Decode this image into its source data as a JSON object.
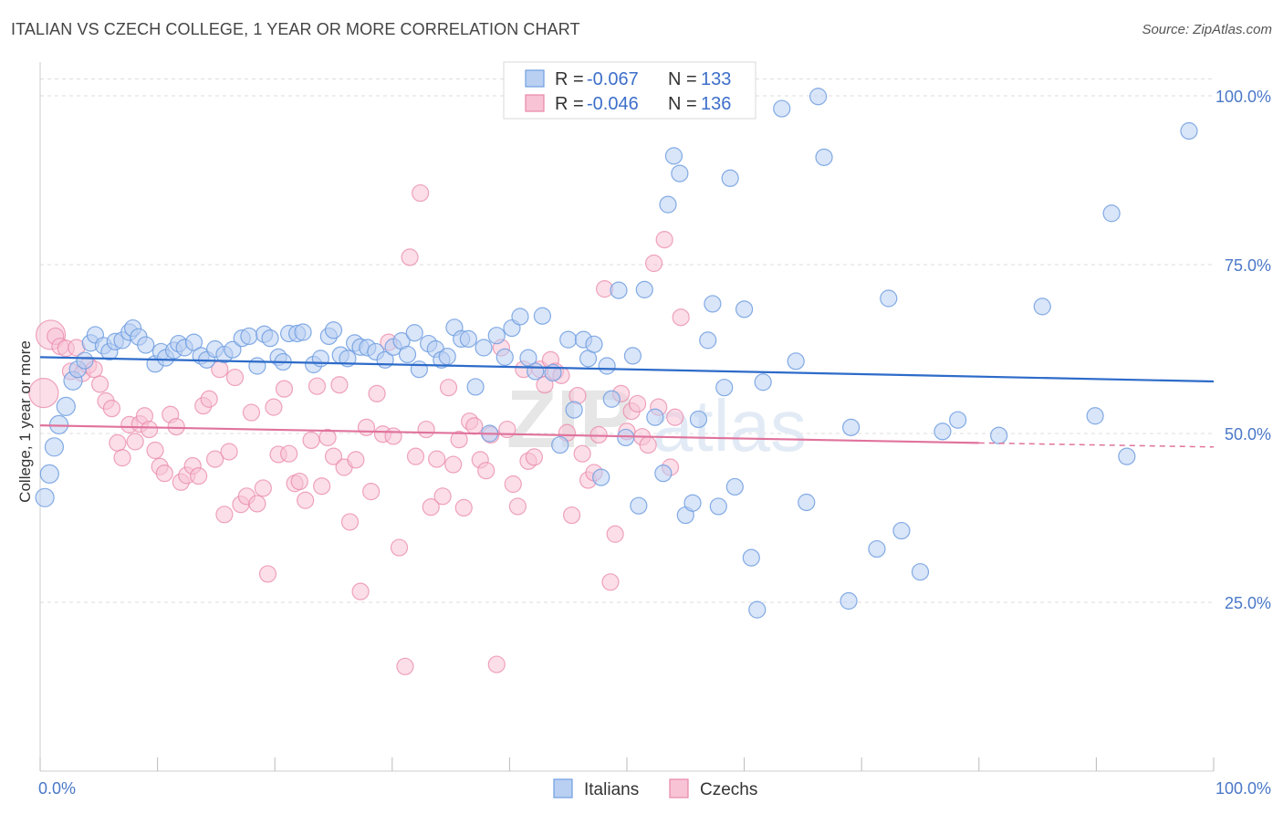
{
  "title": "ITALIAN VS CZECH COLLEGE, 1 YEAR OR MORE CORRELATION CHART",
  "source": "Source: ZipAtlas.com",
  "watermark": {
    "zip": "ZIP",
    "atlas": "atlas"
  },
  "colors": {
    "italians": "#6f9ee0",
    "italians_fill": "#b9d0f3",
    "czechs": "#e987aa",
    "czechs_fill": "#f7c3d5",
    "italians_line": "#2d6bc9",
    "czechs_line": "#e0739c",
    "grid": "#dddddd",
    "tick_text": "#4a78c8"
  },
  "legend": {
    "rows": [
      {
        "r_label": "R = ",
        "r_value": "-0.067",
        "n_label": "N = ",
        "n_value": "133"
      },
      {
        "r_label": "R = ",
        "r_value": "-0.046",
        "n_label": "N = ",
        "n_value": "136"
      }
    ]
  },
  "chart_data": {
    "type": "scatter",
    "xlabel": "",
    "ylabel": "College, 1 year or more",
    "xlim": [
      0,
      100
    ],
    "ylim": [
      0,
      105
    ],
    "x_tick_labels": [
      "0.0%",
      "100.0%"
    ],
    "y_tick_labels": [
      "25.0%",
      "50.0%",
      "75.0%",
      "100.0%"
    ],
    "y_ticks": [
      25,
      50,
      75,
      100
    ],
    "grid": "horizontal dashed",
    "legend_position": "top-center",
    "series": [
      {
        "name": "Italians",
        "trend": {
          "x": [
            0,
            100
          ],
          "y": [
            61.3,
            57.7
          ]
        },
        "points": [
          [
            0.4,
            40.5
          ],
          [
            0.8,
            44
          ],
          [
            1.2,
            48
          ],
          [
            1.6,
            51.3
          ],
          [
            2.2,
            54
          ],
          [
            2.8,
            57.8
          ],
          [
            3.2,
            59.5
          ],
          [
            3.8,
            60.8
          ],
          [
            4.3,
            63.4
          ],
          [
            4.7,
            64.6
          ],
          [
            5.4,
            63
          ],
          [
            5.9,
            62.1
          ],
          [
            6.4,
            63.6
          ],
          [
            7.0,
            63.8
          ],
          [
            7.6,
            65
          ],
          [
            7.9,
            65.6
          ],
          [
            8.4,
            64.3
          ],
          [
            9.0,
            63.1
          ],
          [
            9.8,
            60.3
          ],
          [
            10.3,
            62.1
          ],
          [
            10.7,
            61.2
          ],
          [
            11.4,
            62.3
          ],
          [
            11.8,
            63.3
          ],
          [
            12.3,
            62.7
          ],
          [
            13.1,
            63.5
          ],
          [
            13.7,
            61.5
          ],
          [
            14.2,
            60.9
          ],
          [
            14.9,
            62.5
          ],
          [
            15.7,
            61.7
          ],
          [
            16.4,
            62.4
          ],
          [
            17.2,
            64.1
          ],
          [
            17.8,
            64.4
          ],
          [
            18.5,
            60
          ],
          [
            19.1,
            64.7
          ],
          [
            19.6,
            64.1
          ],
          [
            20.3,
            61.3
          ],
          [
            20.7,
            60.6
          ],
          [
            21.2,
            64.8
          ],
          [
            21.9,
            64.8
          ],
          [
            22.4,
            65
          ],
          [
            23.3,
            60.2
          ],
          [
            23.9,
            61.1
          ],
          [
            24.6,
            64.4
          ],
          [
            25.0,
            65.3
          ],
          [
            25.6,
            61.6
          ],
          [
            26.2,
            61.1
          ],
          [
            26.8,
            63.4
          ],
          [
            27.3,
            62.8
          ],
          [
            27.9,
            62.7
          ],
          [
            28.6,
            62.1
          ],
          [
            29.4,
            60.9
          ],
          [
            30.1,
            62.8
          ],
          [
            30.8,
            63.7
          ],
          [
            31.3,
            61.7
          ],
          [
            31.9,
            64.9
          ],
          [
            32.3,
            59.5
          ],
          [
            33.1,
            63.3
          ],
          [
            33.7,
            62.5
          ],
          [
            34.2,
            60.9
          ],
          [
            34.7,
            61.4
          ],
          [
            35.3,
            65.7
          ],
          [
            35.9,
            64
          ],
          [
            36.5,
            64
          ],
          [
            37.1,
            56.9
          ],
          [
            37.8,
            62.7
          ],
          [
            38.3,
            50
          ],
          [
            38.9,
            64.5
          ],
          [
            39.6,
            61.3
          ],
          [
            40.2,
            65.6
          ],
          [
            40.9,
            67.3
          ],
          [
            41.6,
            61.2
          ],
          [
            42.2,
            59.2
          ],
          [
            42.8,
            67.4
          ],
          [
            43.7,
            59
          ],
          [
            44.3,
            48.3
          ],
          [
            45.0,
            63.9
          ],
          [
            45.5,
            53.5
          ],
          [
            46.3,
            63.9
          ],
          [
            46.7,
            61.1
          ],
          [
            47.2,
            63.2
          ],
          [
            47.8,
            43.5
          ],
          [
            48.3,
            60
          ],
          [
            48.7,
            55.1
          ],
          [
            49.3,
            71.2
          ],
          [
            49.9,
            49.4
          ],
          [
            50.5,
            61.5
          ],
          [
            51.0,
            39.3
          ],
          [
            51.5,
            71.3
          ],
          [
            52.4,
            52.4
          ],
          [
            53.1,
            44.1
          ],
          [
            53.5,
            83.9
          ],
          [
            54.0,
            91.1
          ],
          [
            54.5,
            88.5
          ],
          [
            55.0,
            37.9
          ],
          [
            55.6,
            39.7
          ],
          [
            56.1,
            52.1
          ],
          [
            56.9,
            63.8
          ],
          [
            57.3,
            69.2
          ],
          [
            57.8,
            39.2
          ],
          [
            58.3,
            56.8
          ],
          [
            58.8,
            87.8
          ],
          [
            59.2,
            42.1
          ],
          [
            60.0,
            68.4
          ],
          [
            60.6,
            31.6
          ],
          [
            61.1,
            23.9
          ],
          [
            61.6,
            57.6
          ],
          [
            63.2,
            98.1
          ],
          [
            64.4,
            60.7
          ],
          [
            65.3,
            39.8
          ],
          [
            66.3,
            99.9
          ],
          [
            66.8,
            90.9
          ],
          [
            68.9,
            25.2
          ],
          [
            69.1,
            50.9
          ],
          [
            71.3,
            32.9
          ],
          [
            72.3,
            70
          ],
          [
            73.4,
            35.6
          ],
          [
            75.0,
            29.5
          ],
          [
            76.9,
            50.3
          ],
          [
            78.2,
            52
          ],
          [
            81.7,
            49.7
          ],
          [
            85.4,
            68.8
          ],
          [
            89.9,
            52.6
          ],
          [
            91.3,
            82.6
          ],
          [
            92.6,
            46.6
          ],
          [
            97.9,
            94.8
          ]
        ]
      },
      {
        "name": "Czechs",
        "trend": {
          "x": [
            0,
            80
          ],
          "y": [
            51.2,
            48.6
          ]
        },
        "trend_extension": {
          "x": [
            80,
            100
          ],
          "y": [
            48.6,
            48
          ]
        },
        "points": [
          [
            0.3,
            56
          ],
          [
            0.9,
            64.6
          ],
          [
            1.3,
            64.4
          ],
          [
            1.7,
            62.9
          ],
          [
            2.2,
            62.6
          ],
          [
            2.6,
            59.2
          ],
          [
            3.1,
            62.7
          ],
          [
            3.6,
            58.9
          ],
          [
            4.1,
            60.1
          ],
          [
            4.6,
            59.5
          ],
          [
            5.1,
            57.3
          ],
          [
            5.6,
            54.8
          ],
          [
            6.1,
            53.7
          ],
          [
            6.6,
            48.6
          ],
          [
            7.0,
            46.4
          ],
          [
            7.6,
            51.3
          ],
          [
            8.1,
            48.8
          ],
          [
            8.5,
            51.4
          ],
          [
            8.9,
            52.6
          ],
          [
            9.3,
            50.6
          ],
          [
            9.8,
            47.5
          ],
          [
            10.2,
            45.1
          ],
          [
            10.6,
            44.1
          ],
          [
            11.1,
            52.8
          ],
          [
            11.6,
            51
          ],
          [
            12.0,
            42.8
          ],
          [
            12.5,
            43.8
          ],
          [
            13.0,
            45.2
          ],
          [
            13.5,
            43.7
          ],
          [
            13.9,
            54.1
          ],
          [
            14.4,
            55.1
          ],
          [
            14.9,
            46.2
          ],
          [
            15.3,
            59.5
          ],
          [
            15.7,
            38
          ],
          [
            16.1,
            47.3
          ],
          [
            16.6,
            58.3
          ],
          [
            17.1,
            39.5
          ],
          [
            17.6,
            40.7
          ],
          [
            18.0,
            53.1
          ],
          [
            18.5,
            39.6
          ],
          [
            19.0,
            41.9
          ],
          [
            19.4,
            29.2
          ],
          [
            19.9,
            53.9
          ],
          [
            20.3,
            46.9
          ],
          [
            20.8,
            56.6
          ],
          [
            21.2,
            47
          ],
          [
            21.7,
            42.6
          ],
          [
            22.1,
            42.9
          ],
          [
            22.6,
            40.1
          ],
          [
            23.1,
            49
          ],
          [
            23.6,
            57
          ],
          [
            24.0,
            42.2
          ],
          [
            24.5,
            49.4
          ],
          [
            25.0,
            46.6
          ],
          [
            25.5,
            57.2
          ],
          [
            25.9,
            45
          ],
          [
            26.4,
            36.9
          ],
          [
            26.9,
            46.1
          ],
          [
            27.3,
            26.6
          ],
          [
            27.8,
            50.9
          ],
          [
            28.2,
            41.4
          ],
          [
            28.7,
            55.9
          ],
          [
            29.2,
            49.9
          ],
          [
            29.7,
            63.5
          ],
          [
            30.1,
            49.6
          ],
          [
            30.6,
            33.1
          ],
          [
            31.1,
            15.5
          ],
          [
            31.5,
            76.1
          ],
          [
            32.0,
            46.6
          ],
          [
            32.4,
            85.6
          ],
          [
            32.9,
            50.6
          ],
          [
            33.3,
            39.1
          ],
          [
            33.8,
            46.2
          ],
          [
            34.3,
            40.7
          ],
          [
            34.8,
            56.8
          ],
          [
            35.2,
            45.4
          ],
          [
            35.7,
            49.1
          ],
          [
            36.1,
            39
          ],
          [
            36.6,
            51.8
          ],
          [
            37.0,
            51.1
          ],
          [
            37.5,
            46.1
          ],
          [
            38.0,
            44.5
          ],
          [
            38.4,
            49.8
          ],
          [
            38.9,
            15.8
          ],
          [
            39.3,
            62.7
          ],
          [
            39.8,
            50.6
          ],
          [
            40.3,
            42.5
          ],
          [
            40.7,
            39.2
          ],
          [
            41.2,
            59.5
          ],
          [
            41.6,
            45.9
          ],
          [
            42.1,
            46.5
          ],
          [
            42.6,
            59.5
          ],
          [
            43.0,
            57.2
          ],
          [
            43.5,
            60.9
          ],
          [
            43.9,
            59.2
          ],
          [
            44.4,
            58.6
          ],
          [
            44.9,
            50.1
          ],
          [
            45.3,
            37.9
          ],
          [
            45.8,
            55.6
          ],
          [
            46.2,
            47
          ],
          [
            46.7,
            43.1
          ],
          [
            47.2,
            44.2
          ],
          [
            47.6,
            49.8
          ],
          [
            48.1,
            71.4
          ],
          [
            48.6,
            28
          ],
          [
            49.0,
            35.1
          ],
          [
            49.5,
            55.9
          ],
          [
            50.0,
            50.3
          ],
          [
            50.4,
            53.3
          ],
          [
            50.9,
            54.4
          ],
          [
            51.3,
            49.5
          ],
          [
            51.8,
            48.3
          ],
          [
            52.3,
            75.2
          ],
          [
            52.7,
            53.9
          ],
          [
            53.2,
            78.7
          ],
          [
            53.7,
            45
          ],
          [
            54.1,
            52.4
          ],
          [
            54.6,
            67.2
          ]
        ]
      }
    ]
  },
  "bottom_legend": [
    {
      "label": "Italians"
    },
    {
      "label": "Czechs"
    }
  ]
}
